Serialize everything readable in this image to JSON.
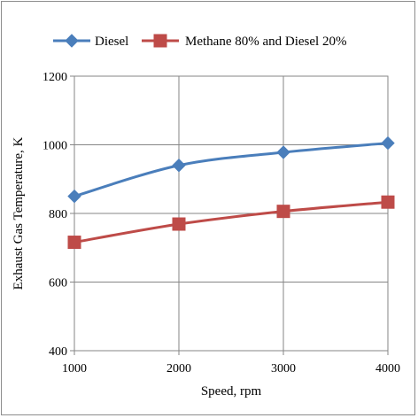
{
  "chart_data": {
    "type": "line",
    "title": "",
    "xlabel": "Speed, rpm",
    "ylabel": "Exhaust Gas Temperature, K",
    "x": [
      1000,
      2000,
      3000,
      4000
    ],
    "xlim": [
      1000,
      4000
    ],
    "ylim": [
      400,
      1200
    ],
    "xticks": [
      1000,
      2000,
      3000,
      4000
    ],
    "yticks": [
      400,
      600,
      800,
      1000,
      1200
    ],
    "grid": true,
    "legend_position": "top",
    "series": [
      {
        "name": "Diesel",
        "values": [
          850,
          940,
          978,
          1005
        ],
        "color": "#4a7ebb",
        "marker": "diamond"
      },
      {
        "name": "Methane 80% and Diesel 20%",
        "values": [
          716,
          769,
          806,
          833
        ],
        "color": "#be4b48",
        "marker": "square"
      }
    ]
  }
}
